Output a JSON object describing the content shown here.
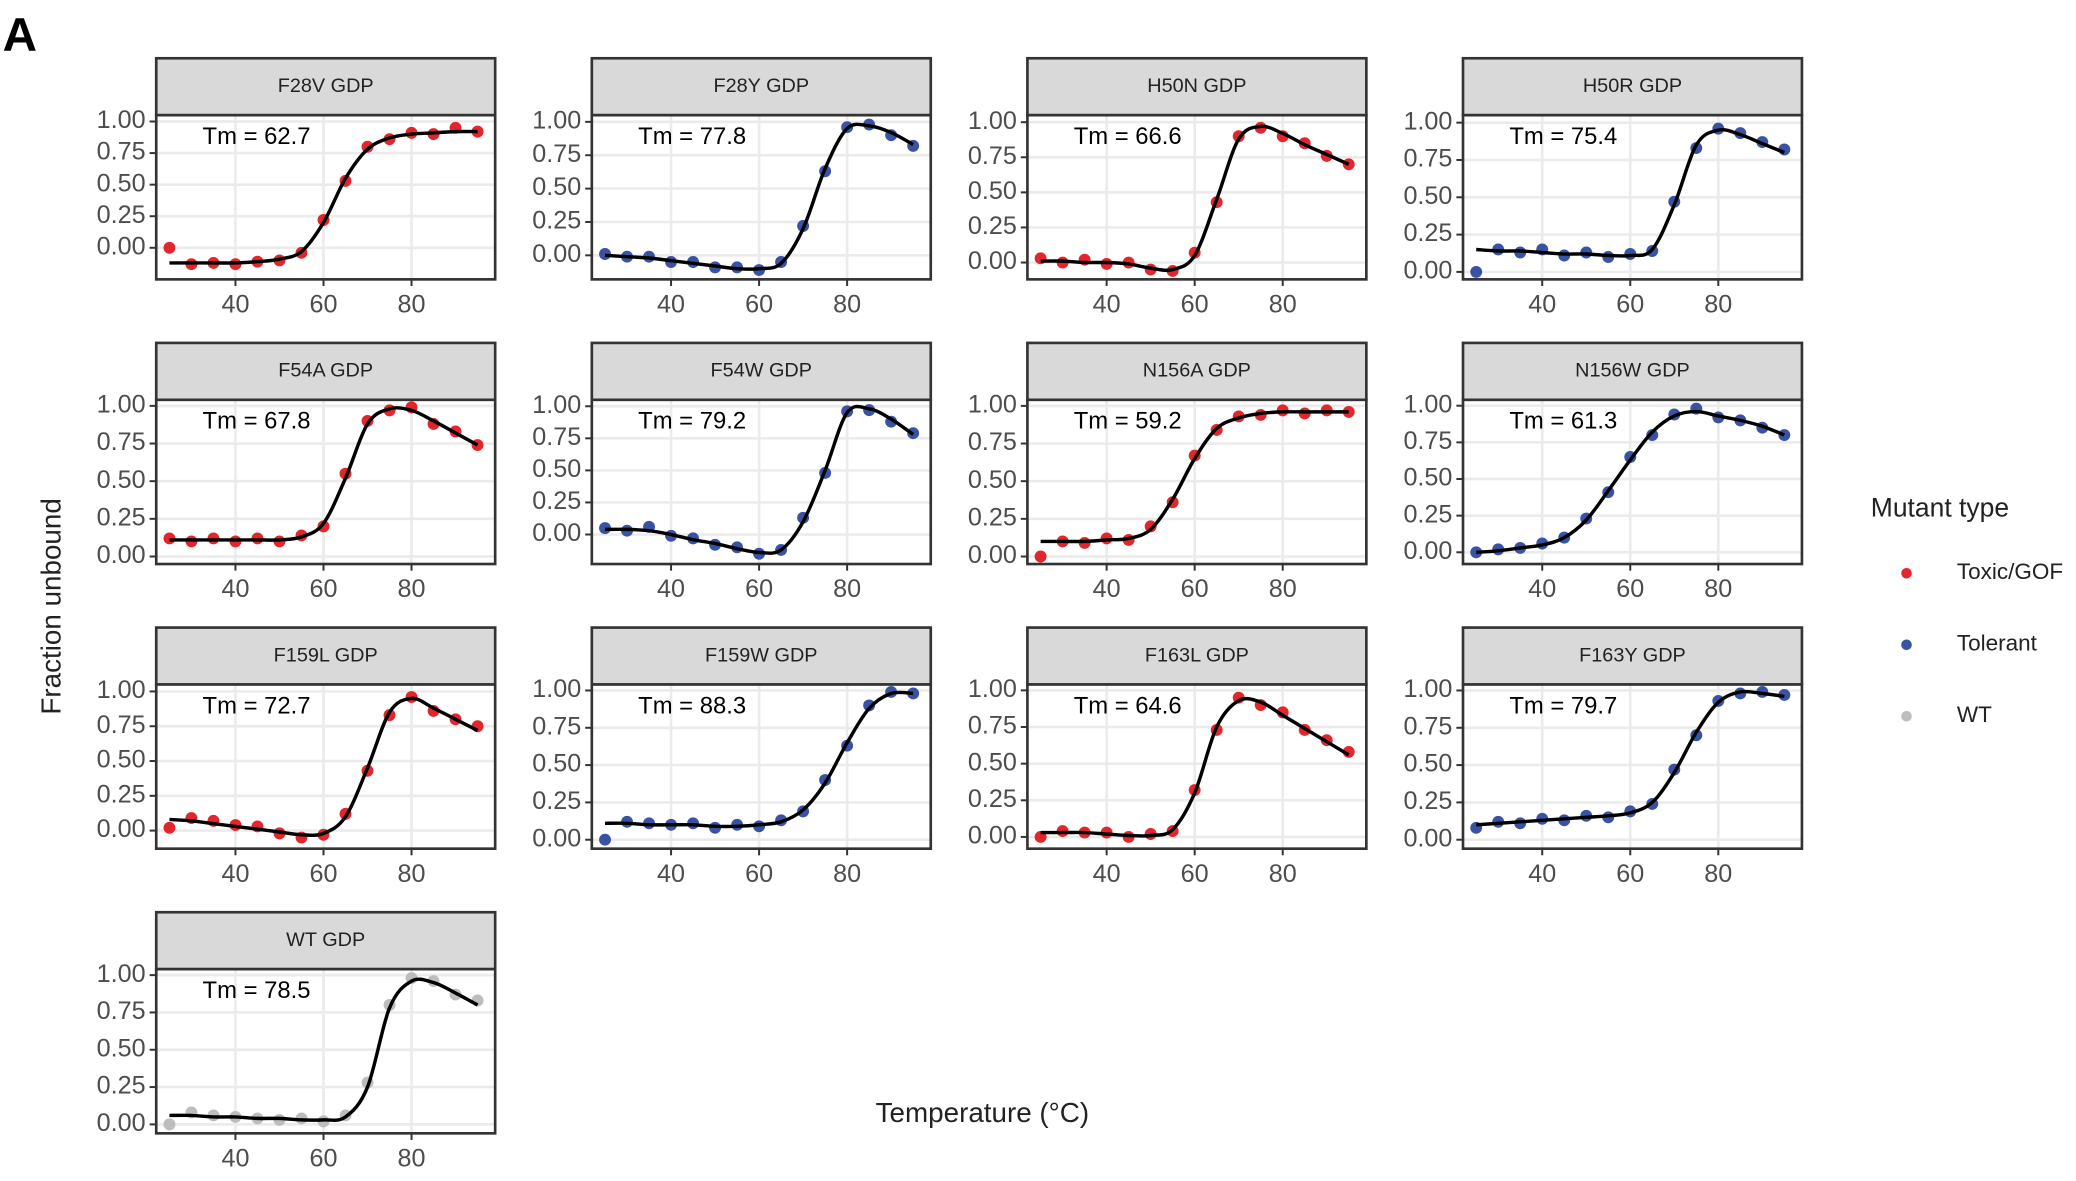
{
  "figure": {
    "label": "A",
    "x_label": "Temperature (°C)",
    "y_label": "Fraction unbound",
    "legend": {
      "title": "Mutant type",
      "entries": [
        {
          "name": "Toxic/GOF",
          "color": "#e3262b"
        },
        {
          "name": "Tolerant",
          "color": "#3953a4"
        },
        {
          "name": "WT",
          "color": "#bdbdbd"
        }
      ]
    }
  },
  "chart_data": [
    {
      "type": "scatter",
      "title": "F28V GDP",
      "annotation": "Tm = 62.7",
      "color": "#e3262b",
      "x": [
        25,
        30,
        35,
        40,
        45,
        50,
        55,
        60,
        65,
        70,
        75,
        80,
        85,
        90,
        95
      ],
      "values": [
        0.0,
        -0.13,
        -0.12,
        -0.13,
        -0.11,
        -0.1,
        -0.04,
        0.22,
        0.53,
        0.8,
        0.86,
        0.91,
        0.9,
        0.95,
        0.92
      ],
      "fit": [
        -0.12,
        -0.12,
        -0.12,
        -0.12,
        -0.11,
        -0.09,
        -0.03,
        0.2,
        0.55,
        0.78,
        0.87,
        0.9,
        0.91,
        0.92,
        0.92
      ],
      "xlim": [
        22,
        99
      ],
      "xticks": [
        40,
        60,
        80
      ],
      "ylim": [
        -0.25,
        1.05
      ],
      "yticks": [
        {
          "value": 0,
          "label": "0.00"
        },
        {
          "value": 0.25,
          "label": "0.25"
        },
        {
          "value": 0.5,
          "label": "0.50"
        },
        {
          "value": 0.75,
          "label": "0.75"
        },
        {
          "value": 1,
          "label": "1.00"
        }
      ]
    },
    {
      "type": "scatter",
      "title": "F28Y GDP",
      "annotation": "Tm = 77.8",
      "color": "#3953a4",
      "x": [
        25,
        30,
        35,
        40,
        45,
        50,
        55,
        60,
        65,
        70,
        75,
        80,
        85,
        90,
        95
      ],
      "values": [
        0.01,
        -0.01,
        -0.01,
        -0.05,
        -0.05,
        -0.09,
        -0.09,
        -0.11,
        -0.05,
        0.22,
        0.63,
        0.96,
        0.98,
        0.9,
        0.82
      ],
      "fit": [
        0.0,
        -0.01,
        -0.02,
        -0.04,
        -0.06,
        -0.08,
        -0.1,
        -0.1,
        -0.06,
        0.2,
        0.65,
        0.95,
        0.97,
        0.92,
        0.83
      ],
      "xlim": [
        22,
        99
      ],
      "xticks": [
        40,
        60,
        80
      ],
      "ylim": [
        -0.18,
        1.05
      ],
      "yticks": [
        {
          "value": 0,
          "label": "0.00"
        },
        {
          "value": 0.25,
          "label": "0.25"
        },
        {
          "value": 0.5,
          "label": "0.50"
        },
        {
          "value": 0.75,
          "label": "0.75"
        },
        {
          "value": 1,
          "label": "1.00"
        }
      ]
    },
    {
      "type": "scatter",
      "title": "H50N GDP",
      "annotation": "Tm = 66.6",
      "color": "#e3262b",
      "x": [
        25,
        30,
        35,
        40,
        45,
        50,
        55,
        60,
        65,
        70,
        75,
        80,
        85,
        90,
        95
      ],
      "values": [
        0.03,
        0.0,
        0.02,
        -0.01,
        0.0,
        -0.05,
        -0.06,
        0.07,
        0.43,
        0.9,
        0.96,
        0.9,
        0.85,
        0.76,
        0.7
      ],
      "fit": [
        0.01,
        0.01,
        0.0,
        0.0,
        -0.01,
        -0.04,
        -0.05,
        0.05,
        0.45,
        0.88,
        0.97,
        0.92,
        0.84,
        0.77,
        0.7
      ],
      "xlim": [
        22,
        99
      ],
      "xticks": [
        40,
        60,
        80
      ],
      "ylim": [
        -0.12,
        1.05
      ],
      "yticks": [
        {
          "value": 0,
          "label": "0.00"
        },
        {
          "value": 0.25,
          "label": "0.25"
        },
        {
          "value": 0.5,
          "label": "0.50"
        },
        {
          "value": 0.75,
          "label": "0.75"
        },
        {
          "value": 1,
          "label": "1.00"
        }
      ]
    },
    {
      "type": "scatter",
      "title": "H50R GDP",
      "annotation": "Tm = 75.4",
      "color": "#3953a4",
      "x": [
        25,
        30,
        35,
        40,
        45,
        50,
        55,
        60,
        65,
        70,
        75,
        80,
        85,
        90,
        95
      ],
      "values": [
        0.0,
        0.15,
        0.13,
        0.15,
        0.11,
        0.13,
        0.1,
        0.12,
        0.14,
        0.47,
        0.83,
        0.96,
        0.93,
        0.87,
        0.82
      ],
      "fit": [
        0.15,
        0.14,
        0.14,
        0.13,
        0.12,
        0.12,
        0.11,
        0.11,
        0.15,
        0.45,
        0.85,
        0.95,
        0.92,
        0.86,
        0.8
      ],
      "xlim": [
        22,
        99
      ],
      "xticks": [
        40,
        60,
        80
      ],
      "ylim": [
        -0.05,
        1.05
      ],
      "yticks": [
        {
          "value": 0,
          "label": "0.00"
        },
        {
          "value": 0.25,
          "label": "0.25"
        },
        {
          "value": 0.5,
          "label": "0.50"
        },
        {
          "value": 0.75,
          "label": "0.75"
        },
        {
          "value": 1,
          "label": "1.00"
        }
      ]
    },
    {
      "type": "scatter",
      "title": "F54A GDP",
      "annotation": "Tm = 67.8",
      "color": "#e3262b",
      "x": [
        25,
        30,
        35,
        40,
        45,
        50,
        55,
        60,
        65,
        70,
        75,
        80,
        85,
        90,
        95
      ],
      "values": [
        0.12,
        0.1,
        0.12,
        0.1,
        0.12,
        0.1,
        0.14,
        0.2,
        0.55,
        0.9,
        0.97,
        0.99,
        0.88,
        0.83,
        0.74
      ],
      "fit": [
        0.11,
        0.11,
        0.11,
        0.11,
        0.11,
        0.11,
        0.13,
        0.22,
        0.52,
        0.88,
        0.98,
        0.97,
        0.9,
        0.82,
        0.74
      ],
      "xlim": [
        22,
        99
      ],
      "xticks": [
        40,
        60,
        80
      ],
      "ylim": [
        -0.05,
        1.04
      ],
      "yticks": [
        {
          "value": 0,
          "label": "0.00"
        },
        {
          "value": 0.25,
          "label": "0.25"
        },
        {
          "value": 0.5,
          "label": "0.50"
        },
        {
          "value": 0.75,
          "label": "0.75"
        },
        {
          "value": 1,
          "label": "1.00"
        }
      ]
    },
    {
      "type": "scatter",
      "title": "F54W GDP",
      "annotation": "Tm = 79.2",
      "color": "#3953a4",
      "x": [
        25,
        30,
        35,
        40,
        45,
        50,
        55,
        60,
        65,
        70,
        75,
        80,
        85,
        90,
        95
      ],
      "values": [
        0.05,
        0.03,
        0.06,
        -0.01,
        -0.03,
        -0.08,
        -0.1,
        -0.15,
        -0.12,
        0.13,
        0.48,
        0.96,
        0.97,
        0.88,
        0.79
      ],
      "fit": [
        0.04,
        0.04,
        0.03,
        0.0,
        -0.04,
        -0.07,
        -0.11,
        -0.14,
        -0.12,
        0.1,
        0.5,
        0.95,
        0.98,
        0.9,
        0.78
      ],
      "xlim": [
        22,
        99
      ],
      "xticks": [
        40,
        60,
        80
      ],
      "ylim": [
        -0.23,
        1.05
      ],
      "yticks": [
        {
          "value": 0,
          "label": "0.00"
        },
        {
          "value": 0.25,
          "label": "0.25"
        },
        {
          "value": 0.5,
          "label": "0.50"
        },
        {
          "value": 0.75,
          "label": "0.75"
        },
        {
          "value": 1,
          "label": "1.00"
        }
      ]
    },
    {
      "type": "scatter",
      "title": "N156A GDP",
      "annotation": "Tm = 59.2",
      "color": "#e3262b",
      "x": [
        25,
        30,
        35,
        40,
        45,
        50,
        55,
        60,
        65,
        70,
        75,
        80,
        85,
        90,
        95
      ],
      "values": [
        0.0,
        0.1,
        0.09,
        0.12,
        0.11,
        0.2,
        0.36,
        0.67,
        0.84,
        0.93,
        0.94,
        0.97,
        0.95,
        0.97,
        0.96
      ],
      "fit": [
        0.1,
        0.1,
        0.1,
        0.11,
        0.12,
        0.18,
        0.38,
        0.65,
        0.85,
        0.92,
        0.95,
        0.96,
        0.96,
        0.96,
        0.96
      ],
      "xlim": [
        22,
        99
      ],
      "xticks": [
        40,
        60,
        80
      ],
      "ylim": [
        -0.05,
        1.04
      ],
      "yticks": [
        {
          "value": 0,
          "label": "0.00"
        },
        {
          "value": 0.25,
          "label": "0.25"
        },
        {
          "value": 0.5,
          "label": "0.50"
        },
        {
          "value": 0.75,
          "label": "0.75"
        },
        {
          "value": 1,
          "label": "1.00"
        }
      ]
    },
    {
      "type": "scatter",
      "title": "N156W GDP",
      "annotation": "Tm = 61.3",
      "color": "#3953a4",
      "x": [
        25,
        30,
        35,
        40,
        45,
        50,
        55,
        60,
        65,
        70,
        75,
        80,
        85,
        90,
        95
      ],
      "values": [
        0.0,
        0.02,
        0.03,
        0.06,
        0.1,
        0.23,
        0.41,
        0.65,
        0.8,
        0.94,
        0.98,
        0.92,
        0.9,
        0.85,
        0.8
      ],
      "fit": [
        0.0,
        0.01,
        0.03,
        0.05,
        0.1,
        0.22,
        0.42,
        0.63,
        0.82,
        0.93,
        0.96,
        0.93,
        0.9,
        0.86,
        0.8
      ],
      "xlim": [
        22,
        99
      ],
      "xticks": [
        40,
        60,
        80
      ],
      "ylim": [
        -0.08,
        1.04
      ],
      "yticks": [
        {
          "value": 0,
          "label": "0.00"
        },
        {
          "value": 0.25,
          "label": "0.25"
        },
        {
          "value": 0.5,
          "label": "0.50"
        },
        {
          "value": 0.75,
          "label": "0.75"
        },
        {
          "value": 1,
          "label": "1.00"
        }
      ]
    },
    {
      "type": "scatter",
      "title": "F159L GDP",
      "annotation": "Tm = 72.7",
      "color": "#e3262b",
      "x": [
        25,
        30,
        35,
        40,
        45,
        50,
        55,
        60,
        65,
        70,
        75,
        80,
        85,
        90,
        95
      ],
      "values": [
        0.02,
        0.09,
        0.07,
        0.04,
        0.03,
        -0.02,
        -0.05,
        -0.03,
        0.12,
        0.43,
        0.83,
        0.96,
        0.86,
        0.8,
        0.75
      ],
      "fit": [
        0.08,
        0.07,
        0.05,
        0.03,
        0.01,
        -0.01,
        -0.03,
        -0.02,
        0.1,
        0.45,
        0.85,
        0.95,
        0.88,
        0.8,
        0.72
      ],
      "xlim": [
        22,
        99
      ],
      "xticks": [
        40,
        60,
        80
      ],
      "ylim": [
        -0.13,
        1.05
      ],
      "yticks": [
        {
          "value": 0,
          "label": "0.00"
        },
        {
          "value": 0.25,
          "label": "0.25"
        },
        {
          "value": 0.5,
          "label": "0.50"
        },
        {
          "value": 0.75,
          "label": "0.75"
        },
        {
          "value": 1,
          "label": "1.00"
        }
      ]
    },
    {
      "type": "scatter",
      "title": "F159W GDP",
      "annotation": "Tm = 88.3",
      "color": "#3953a4",
      "x": [
        25,
        30,
        35,
        40,
        45,
        50,
        55,
        60,
        65,
        70,
        75,
        80,
        85,
        90,
        95
      ],
      "values": [
        0.0,
        0.12,
        0.11,
        0.1,
        0.11,
        0.08,
        0.1,
        0.09,
        0.13,
        0.19,
        0.4,
        0.63,
        0.9,
        0.99,
        0.98
      ],
      "fit": [
        0.11,
        0.11,
        0.1,
        0.1,
        0.1,
        0.09,
        0.09,
        0.1,
        0.12,
        0.2,
        0.38,
        0.65,
        0.88,
        0.98,
        0.98
      ],
      "xlim": [
        22,
        99
      ],
      "xticks": [
        40,
        60,
        80
      ],
      "ylim": [
        -0.06,
        1.04
      ],
      "yticks": [
        {
          "value": 0,
          "label": "0.00"
        },
        {
          "value": 0.25,
          "label": "0.25"
        },
        {
          "value": 0.5,
          "label": "0.50"
        },
        {
          "value": 0.75,
          "label": "0.75"
        },
        {
          "value": 1,
          "label": "1.00"
        }
      ]
    },
    {
      "type": "scatter",
      "title": "F163L GDP",
      "annotation": "Tm = 64.6",
      "color": "#e3262b",
      "x": [
        25,
        30,
        35,
        40,
        45,
        50,
        55,
        60,
        65,
        70,
        75,
        80,
        85,
        90,
        95
      ],
      "values": [
        0.0,
        0.04,
        0.03,
        0.03,
        0.0,
        0.02,
        0.04,
        0.32,
        0.73,
        0.95,
        0.9,
        0.85,
        0.73,
        0.66,
        0.58
      ],
      "fit": [
        0.03,
        0.03,
        0.03,
        0.02,
        0.01,
        0.01,
        0.05,
        0.3,
        0.75,
        0.93,
        0.92,
        0.83,
        0.74,
        0.65,
        0.56
      ],
      "xlim": [
        22,
        99
      ],
      "xticks": [
        40,
        60,
        80
      ],
      "ylim": [
        -0.08,
        1.04
      ],
      "yticks": [
        {
          "value": 0,
          "label": "0.00"
        },
        {
          "value": 0.25,
          "label": "0.25"
        },
        {
          "value": 0.5,
          "label": "0.50"
        },
        {
          "value": 0.75,
          "label": "0.75"
        },
        {
          "value": 1,
          "label": "1.00"
        }
      ]
    },
    {
      "type": "scatter",
      "title": "F163Y GDP",
      "annotation": "Tm = 79.7",
      "color": "#3953a4",
      "x": [
        25,
        30,
        35,
        40,
        45,
        50,
        55,
        60,
        65,
        70,
        75,
        80,
        85,
        90,
        95
      ],
      "values": [
        0.08,
        0.12,
        0.11,
        0.14,
        0.13,
        0.16,
        0.15,
        0.19,
        0.24,
        0.47,
        0.7,
        0.93,
        0.98,
        0.99,
        0.97
      ],
      "fit": [
        0.1,
        0.11,
        0.12,
        0.13,
        0.14,
        0.15,
        0.16,
        0.18,
        0.25,
        0.45,
        0.72,
        0.92,
        0.99,
        0.98,
        0.96
      ],
      "xlim": [
        22,
        99
      ],
      "xticks": [
        40,
        60,
        80
      ],
      "ylim": [
        -0.06,
        1.04
      ],
      "yticks": [
        {
          "value": 0,
          "label": "0.00"
        },
        {
          "value": 0.25,
          "label": "0.25"
        },
        {
          "value": 0.5,
          "label": "0.50"
        },
        {
          "value": 0.75,
          "label": "0.75"
        },
        {
          "value": 1,
          "label": "1.00"
        }
      ]
    },
    {
      "type": "scatter",
      "title": "WT GDP",
      "annotation": "Tm = 78.5",
      "color": "#bdbdbd",
      "x": [
        25,
        30,
        35,
        40,
        45,
        50,
        55,
        60,
        65,
        70,
        75,
        80,
        85,
        90,
        95
      ],
      "values": [
        0.0,
        0.08,
        0.06,
        0.05,
        0.04,
        0.03,
        0.04,
        0.02,
        0.06,
        0.28,
        0.8,
        0.98,
        0.96,
        0.87,
        0.83
      ],
      "fit": [
        0.06,
        0.06,
        0.05,
        0.05,
        0.04,
        0.04,
        0.03,
        0.03,
        0.05,
        0.25,
        0.78,
        0.96,
        0.95,
        0.88,
        0.8
      ],
      "xlim": [
        22,
        99
      ],
      "xticks": [
        40,
        60,
        80
      ],
      "ylim": [
        -0.06,
        1.04
      ],
      "yticks": [
        {
          "value": 0,
          "label": "0.00"
        },
        {
          "value": 0.25,
          "label": "0.25"
        },
        {
          "value": 0.5,
          "label": "0.50"
        },
        {
          "value": 0.75,
          "label": "0.75"
        },
        {
          "value": 1,
          "label": "1.00"
        }
      ]
    }
  ]
}
